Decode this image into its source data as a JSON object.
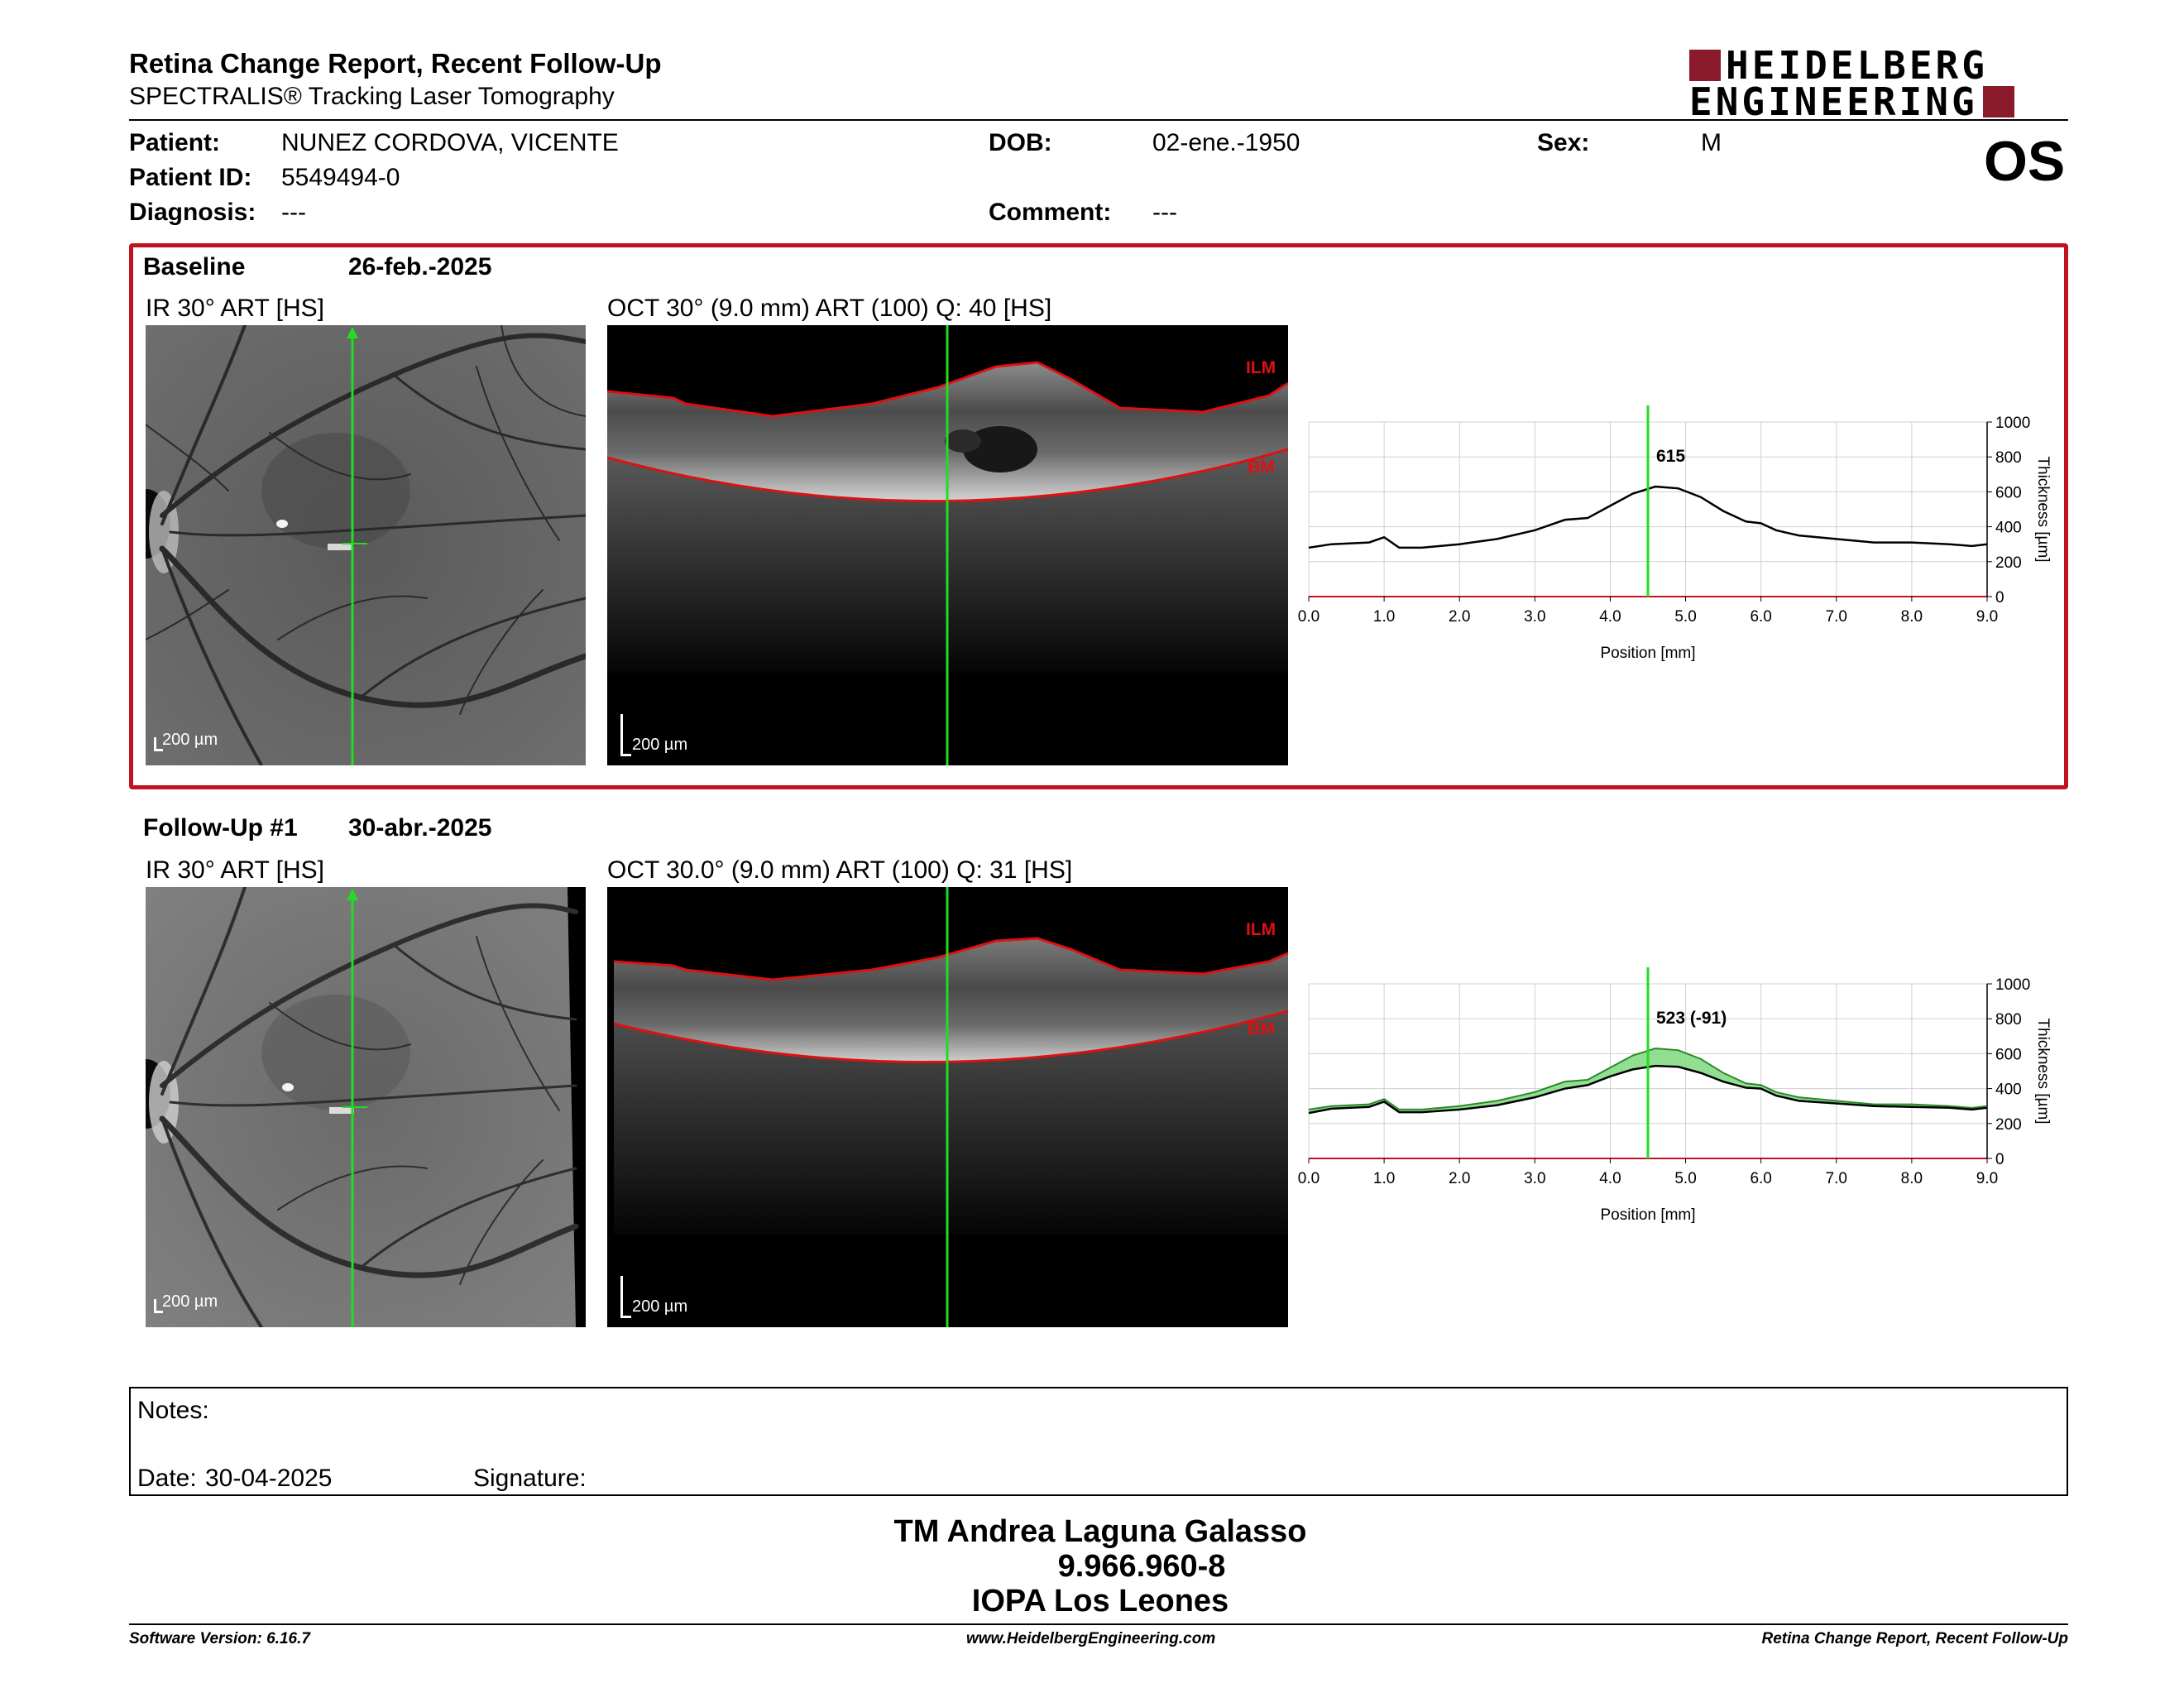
{
  "header": {
    "title": "Retina Change Report, Recent Follow-Up",
    "subtitle": "SPECTRALIS® Tracking Laser Tomography",
    "logo_line1": "HEIDELBERG",
    "logo_line2": "ENGINEERING"
  },
  "patient": {
    "patient_label": "Patient:",
    "patient_value": "NUNEZ CORDOVA, VICENTE",
    "id_label": "Patient ID:",
    "id_value": "5549494-0",
    "diagnosis_label": "Diagnosis:",
    "diagnosis_value": "---",
    "dob_label": "DOB:",
    "dob_value": "02-ene.-1950",
    "comment_label": "Comment:",
    "comment_value": "---",
    "sex_label": "Sex:",
    "sex_value": "M",
    "eye": "OS"
  },
  "baseline": {
    "label": "Baseline",
    "date": "26-feb.-2025",
    "ir_label": "IR 30° ART [HS]",
    "oct_label": "OCT 30° (9.0 mm) ART (100) Q: 40 [HS]",
    "scale": "200 µm",
    "ilm": "ILM",
    "bm": "BM"
  },
  "followup": {
    "label": "Follow-Up #1",
    "date": "30-abr.-2025",
    "ir_label": "IR 30° ART [HS]",
    "oct_label": "OCT 30.0° (9.0 mm) ART (100) Q: 31 [HS]",
    "scale": "200 µm",
    "ilm": "ILM",
    "bm": "BM"
  },
  "chart_data": [
    {
      "type": "line",
      "xlabel": "Position [mm]",
      "ylabel": "Thickness [µm]",
      "xlim": [
        0,
        9
      ],
      "ylim": [
        0,
        1000
      ],
      "x_ticks": [
        "0.0",
        "1.0",
        "2.0",
        "3.0",
        "4.0",
        "5.0",
        "6.0",
        "7.0",
        "8.0",
        "9.0"
      ],
      "y_ticks": [
        "0",
        "200",
        "400",
        "600",
        "800",
        "1000"
      ],
      "marker_x": 4.5,
      "marker_label": "615",
      "grid": true,
      "series": [
        {
          "x": [
            0,
            0.3,
            0.8,
            1.0,
            1.2,
            1.5,
            2.0,
            2.5,
            3.0,
            3.4,
            3.7,
            4.0,
            4.3,
            4.6,
            4.9,
            5.2,
            5.5,
            5.8,
            6.0,
            6.2,
            6.5,
            7.0,
            7.5,
            8.0,
            8.5,
            8.8,
            9.0
          ],
          "y": [
            280,
            300,
            310,
            340,
            280,
            280,
            300,
            330,
            380,
            440,
            450,
            520,
            590,
            630,
            620,
            570,
            490,
            430,
            420,
            380,
            350,
            330,
            310,
            310,
            300,
            290,
            300
          ]
        }
      ]
    },
    {
      "type": "area",
      "xlabel": "Position [mm]",
      "ylabel": "Thickness [µm]",
      "xlim": [
        0,
        9
      ],
      "ylim": [
        0,
        1000
      ],
      "x_ticks": [
        "0.0",
        "1.0",
        "2.0",
        "3.0",
        "4.0",
        "5.0",
        "6.0",
        "7.0",
        "8.0",
        "9.0"
      ],
      "y_ticks": [
        "0",
        "200",
        "400",
        "600",
        "800",
        "1000"
      ],
      "marker_x": 4.5,
      "marker_label": "523 (-91)",
      "grid": true,
      "series": [
        {
          "x": [
            0,
            0.3,
            0.8,
            1.0,
            1.2,
            1.5,
            2.0,
            2.5,
            3.0,
            3.4,
            3.7,
            4.0,
            4.3,
            4.6,
            4.9,
            5.2,
            5.5,
            5.8,
            6.0,
            6.2,
            6.5,
            7.0,
            7.5,
            8.0,
            8.5,
            8.8,
            9.0
          ],
          "y": [
            280,
            300,
            310,
            340,
            280,
            280,
            300,
            330,
            380,
            440,
            450,
            520,
            590,
            630,
            620,
            570,
            490,
            430,
            420,
            380,
            350,
            330,
            310,
            310,
            300,
            290,
            300
          ]
        },
        {
          "x": [
            0,
            0.3,
            0.8,
            1.0,
            1.2,
            1.5,
            2.0,
            2.5,
            3.0,
            3.4,
            3.7,
            4.0,
            4.3,
            4.6,
            4.9,
            5.2,
            5.5,
            5.8,
            6.0,
            6.2,
            6.5,
            7.0,
            7.5,
            8.0,
            8.5,
            8.8,
            9.0
          ],
          "y": [
            260,
            285,
            295,
            325,
            265,
            265,
            280,
            305,
            350,
            400,
            420,
            470,
            510,
            530,
            525,
            490,
            440,
            405,
            400,
            360,
            330,
            315,
            300,
            295,
            290,
            280,
            290
          ]
        }
      ]
    }
  ],
  "notes": {
    "notes_label": "Notes:",
    "date_label": "Date:",
    "date_value": "30-04-2025",
    "signature_label": "Signature:"
  },
  "signature": {
    "line1": "TM Andrea Laguna Galasso",
    "line2": "9.966.960-8",
    "line3": "IOPA Los Leones"
  },
  "footer": {
    "version": "Software Version: 6.16.7",
    "website": "www.HeidelbergEngineering.com",
    "report": "Retina Change Report, Recent Follow-Up"
  },
  "colors": {
    "accent_red": "#c1121f",
    "logo_red": "#8b1a2b",
    "scan_green": "#22dd22",
    "diff_green": "#7fd97f"
  }
}
